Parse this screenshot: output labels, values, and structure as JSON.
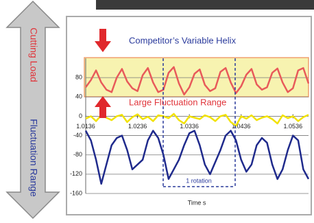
{
  "chart_data": {
    "type": "line",
    "side_labels": [
      "Cutting Load",
      "Fluctuation Range"
    ],
    "annotations": [
      "Competitor’s Variable Helix",
      "Large Fluctuation Range",
      "1 rotation"
    ],
    "x_label": "Time s",
    "x": [
      1.0136,
      1.0146,
      1.0156,
      1.0166,
      1.0176,
      1.0186,
      1.0196,
      1.0206,
      1.0216,
      1.0226,
      1.0236,
      1.0246,
      1.0256,
      1.0266,
      1.0276,
      1.0286,
      1.0296,
      1.0306,
      1.0316,
      1.0326,
      1.0336,
      1.0346,
      1.0356,
      1.0366,
      1.0376,
      1.0386,
      1.0396,
      1.0406,
      1.0416,
      1.0426,
      1.0436,
      1.0446,
      1.0456,
      1.0466,
      1.0476,
      1.0486,
      1.0496,
      1.0506,
      1.0516,
      1.0526,
      1.0536,
      1.0546,
      1.0556,
      1.0566
    ],
    "series": [
      {
        "color": "#e85a5a",
        "values": [
          60,
          75,
          95,
          70,
          55,
          50,
          80,
          98,
          72,
          58,
          52,
          85,
          100,
          70,
          50,
          55,
          90,
          102,
          68,
          45,
          60,
          88,
          97,
          65,
          52,
          58,
          92,
          100,
          70,
          48,
          62,
          86,
          98,
          66,
          55,
          60,
          90,
          99,
          70,
          50,
          58,
          95,
          100,
          68
        ]
      },
      {
        "color": "#f2e200",
        "values": [
          -5,
          0,
          -10,
          2,
          -3,
          -8,
          0,
          3,
          -12,
          -2,
          4,
          -6,
          -1,
          -10,
          2,
          0,
          -4,
          5,
          -8,
          -15,
          0,
          -3,
          -6,
          2,
          -2,
          -10,
          0,
          3,
          -12,
          -20,
          0,
          -5,
          2,
          -8,
          -3,
          0,
          -6,
          -15,
          2,
          -4,
          0,
          -10,
          -2,
          3
        ]
      },
      {
        "color": "#1f2a8c",
        "values": [
          -30,
          -50,
          -90,
          -140,
          -100,
          -60,
          -45,
          -40,
          -70,
          -110,
          -100,
          -90,
          -50,
          -30,
          -45,
          -80,
          -130,
          -110,
          -90,
          -60,
          -35,
          -30,
          -60,
          -100,
          -120,
          -95,
          -70,
          -40,
          -30,
          -50,
          -90,
          -115,
          -100,
          -60,
          -45,
          -55,
          -100,
          -130,
          -110,
          -70,
          -40,
          -50,
          -110,
          -130
        ]
      }
    ],
    "xlim": [
      1.0136,
      1.0566
    ],
    "xticks": [
      1.0136,
      1.0236,
      1.0336,
      1.0436,
      1.0536
    ],
    "ylim": [
      -160,
      120
    ],
    "yticks": [
      -160,
      -120,
      -80,
      -40,
      0,
      40,
      80
    ],
    "grid": true
  }
}
